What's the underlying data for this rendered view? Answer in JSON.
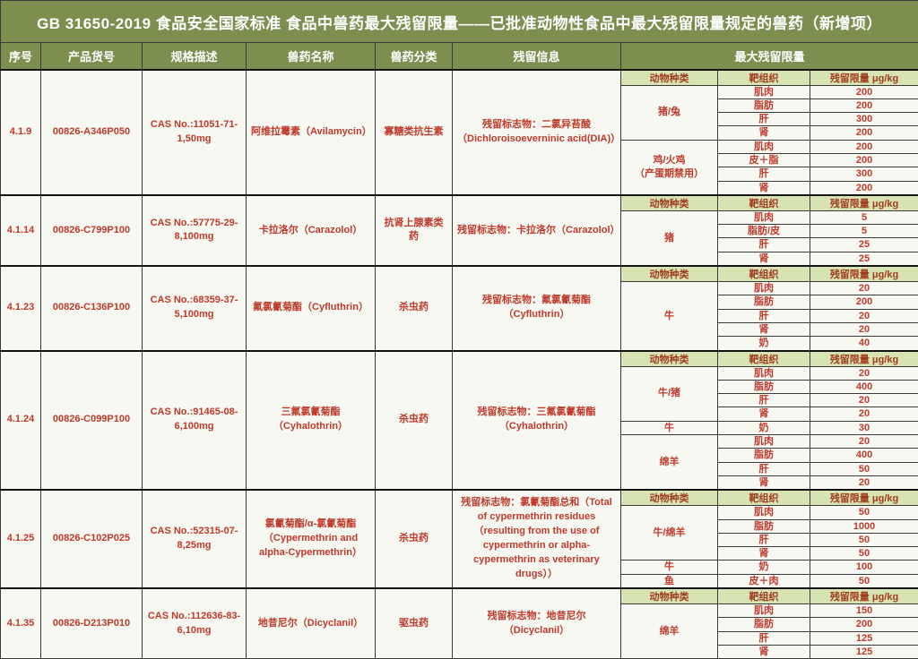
{
  "title": "GB 31650-2019 食品安全国家标准 食品中兽药最大残留限量——已批准动物性食品中最大残留限量规定的兽药（新增项）",
  "colors": {
    "header_bg": "#7c8f4f",
    "subheader_bg": "#d8e3b4",
    "subheader_text": "#a03c1e",
    "data_text_red": "#c0392b",
    "cell_bg": "#f6f8f1",
    "grid_line": "#3a3a3a"
  },
  "columns": [
    "序号",
    "产品货号",
    "规格描述",
    "兽药名称",
    "兽药分类",
    "残留信息",
    "最大残留限量"
  ],
  "mrl_columns": [
    "动物种类",
    "靶组织",
    "残留限量 μg/kg"
  ],
  "rows": [
    {
      "id": "4.1.9",
      "sku": "00826-A346P050",
      "spec": "CAS No.:11051-71-1,50mg",
      "drug": "阿维拉霉素（Avilamycin）",
      "category": "寡糖类抗生素",
      "residue": "残留标志物：二氯异苔酸（Dichloroisoeverninic acid(DIA)）",
      "groups": [
        {
          "species": "猪/兔",
          "tissues": [
            [
              "肌肉",
              "200"
            ],
            [
              "脂肪",
              "200"
            ],
            [
              "肝",
              "300"
            ],
            [
              "肾",
              "200"
            ]
          ]
        },
        {
          "species": "鸡/火鸡\n（产蛋期禁用）",
          "tissues": [
            [
              "肌肉",
              "200"
            ],
            [
              "皮＋脂",
              "200"
            ],
            [
              "肝",
              "300"
            ],
            [
              "肾",
              "200"
            ]
          ]
        }
      ]
    },
    {
      "id": "4.1.14",
      "sku": "00826-C799P100",
      "spec": "CAS No.:57775-29-8,100mg",
      "drug": "卡拉洛尔（Carazolol）",
      "category": "抗肾上腺素类药",
      "residue": "残留标志物：卡拉洛尔（Carazolol）",
      "groups": [
        {
          "species": "猪",
          "tissues": [
            [
              "肌肉",
              "5"
            ],
            [
              "脂肪/皮",
              "5"
            ],
            [
              "肝",
              "25"
            ],
            [
              "肾",
              "25"
            ]
          ]
        }
      ]
    },
    {
      "id": "4.1.23",
      "sku": "00826-C136P100",
      "spec": "CAS No.:68359-37-5,100mg",
      "drug": "氟氯氰菊酯（Cyfluthrin）",
      "category": "杀虫药",
      "residue": "残留标志物：氟氯氰菊酯（Cyfluthrin）",
      "groups": [
        {
          "species": "牛",
          "tissues": [
            [
              "肌肉",
              "20"
            ],
            [
              "脂肪",
              "200"
            ],
            [
              "肝",
              "20"
            ],
            [
              "肾",
              "20"
            ],
            [
              "奶",
              "40"
            ]
          ]
        }
      ]
    },
    {
      "id": "4.1.24",
      "sku": "00826-C099P100",
      "spec": "CAS No.:91465-08-6,100mg",
      "drug": "三氟氯氰菊酯（Cyhalothrin）",
      "category": "杀虫药",
      "residue": "残留标志物：三氟氯氰菊酯（Cyhalothrin）",
      "groups": [
        {
          "species": "牛/猪",
          "tissues": [
            [
              "肌肉",
              "20"
            ],
            [
              "脂肪",
              "400"
            ],
            [
              "肝",
              "20"
            ],
            [
              "肾",
              "20"
            ]
          ]
        },
        {
          "species": "牛",
          "tissues": [
            [
              "奶",
              "30"
            ]
          ]
        },
        {
          "species": "绵羊",
          "tissues": [
            [
              "肌肉",
              "20"
            ],
            [
              "脂肪",
              "400"
            ],
            [
              "肝",
              "50"
            ],
            [
              "肾",
              "20"
            ]
          ]
        }
      ]
    },
    {
      "id": "4.1.25",
      "sku": "00826-C102P025",
      "spec": "CAS No.:52315-07-8,25mg",
      "drug": "氯氰菊酯/α-氯氰菊酯（Cypermethrin and alpha-Cypermethrin）",
      "category": "杀虫药",
      "residue": "残留标志物：氯氰菊酯总和（Total of cypermethrin residues（resulting from the use of cypermethrin or alpha-cypermethrin as veterinary drugs））",
      "groups": [
        {
          "species": "牛/绵羊",
          "tissues": [
            [
              "肌肉",
              "50"
            ],
            [
              "脂肪",
              "1000"
            ],
            [
              "肝",
              "50"
            ],
            [
              "肾",
              "50"
            ]
          ]
        },
        {
          "species": "牛",
          "tissues": [
            [
              "奶",
              "100"
            ]
          ]
        },
        {
          "species": "鱼",
          "tissues": [
            [
              "皮＋肉",
              "50"
            ]
          ]
        }
      ]
    },
    {
      "id": "4.1.35",
      "sku": "00826-D213P010",
      "spec": "CAS No.:112636-83-6,10mg",
      "drug": "地昔尼尔（Dicyclanil）",
      "category": "驱虫药",
      "residue": "残留标志物：地昔尼尔（Dicyclanil）",
      "groups": [
        {
          "species": "绵羊",
          "tissues": [
            [
              "肌肉",
              "150"
            ],
            [
              "脂肪",
              "200"
            ],
            [
              "肝",
              "125"
            ],
            [
              "肾",
              "125"
            ]
          ]
        }
      ]
    }
  ]
}
